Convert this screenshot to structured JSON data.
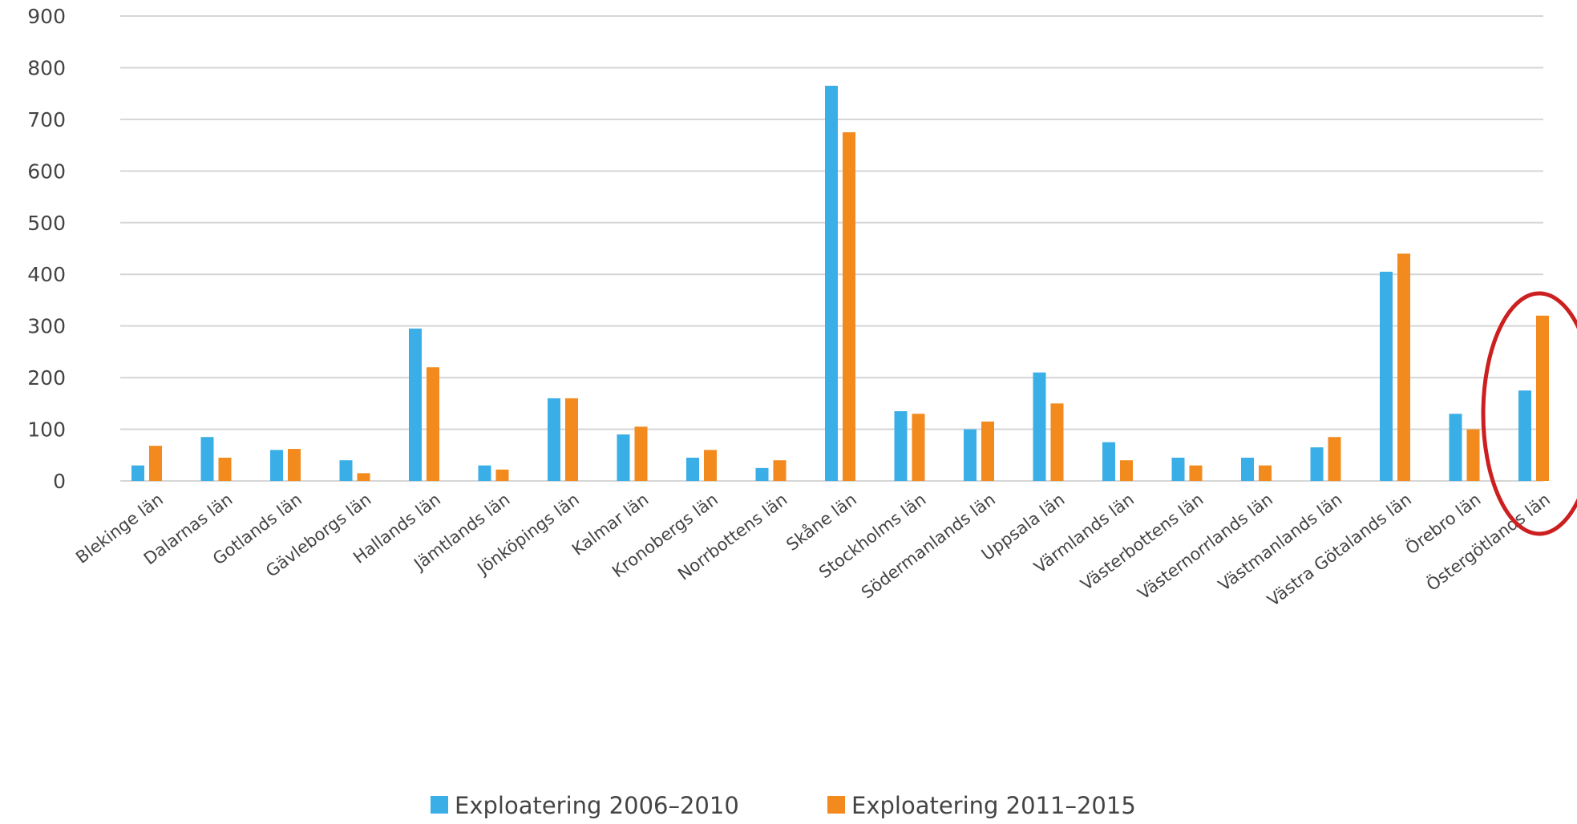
{
  "chart_data": {
    "type": "bar",
    "title": "",
    "xlabel": "",
    "ylabel": "",
    "ylim": [
      0,
      900
    ],
    "yticks": [
      0,
      100,
      200,
      300,
      400,
      500,
      600,
      700,
      800,
      900
    ],
    "grid": true,
    "legend_position": "bottom",
    "categories": [
      "Blekinge län",
      "Dalarnas län",
      "Gotlands län",
      "Gävleborgs län",
      "Hallands län",
      "Jämtlands län",
      "Jönköpings län",
      "Kalmar län",
      "Kronobergs län",
      "Norrbottens län",
      "Skåne län",
      "Stockholms län",
      "Södermanlands län",
      "Uppsala län",
      "Värmlands län",
      "Västerbottens län",
      "Västernorrlands län",
      "Västmanlands län",
      "Västra Götalands län",
      "Örebro län",
      "Östergötlands län"
    ],
    "series": [
      {
        "name": "Exploatering 2006–2010",
        "color": "#3aaee6",
        "values": [
          30,
          85,
          60,
          40,
          295,
          30,
          160,
          90,
          45,
          25,
          765,
          135,
          100,
          210,
          75,
          45,
          45,
          65,
          405,
          130,
          175
        ]
      },
      {
        "name": "Exploatering 2011–2015",
        "color": "#f28a1e",
        "values": [
          68,
          45,
          62,
          15,
          220,
          22,
          160,
          105,
          60,
          40,
          675,
          130,
          115,
          150,
          40,
          30,
          30,
          85,
          440,
          100,
          320
        ]
      }
    ],
    "highlight": {
      "category": "Östergötlands län",
      "shape": "ellipse",
      "color": "#cc1f1f"
    }
  }
}
